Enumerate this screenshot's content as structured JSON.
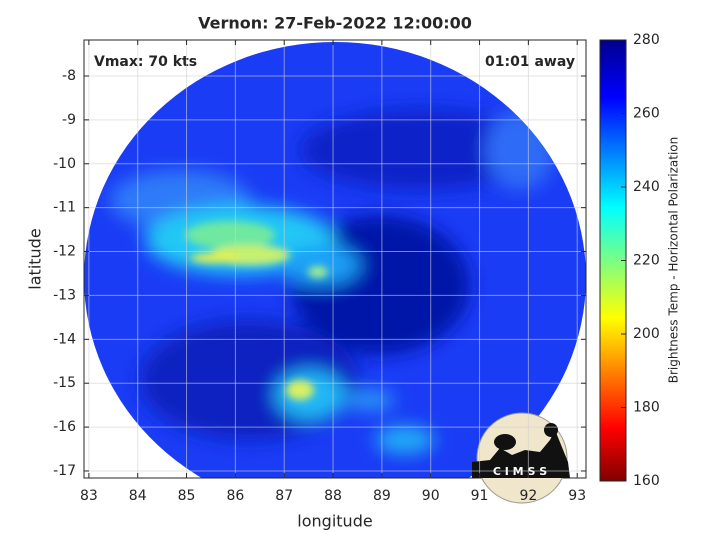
{
  "chart_data": {
    "type": "swath",
    "title": "Vernon: 27-Feb-2022 12:00:00",
    "annotations": [
      "Vmax: 70 kts",
      "01:01 away"
    ],
    "xlabel": "longitude",
    "ylabel": "latitude",
    "xlim": [
      82.9,
      93.18
    ],
    "ylim": [
      -17.16,
      -7.18
    ],
    "xticks": [
      83,
      84,
      85,
      86,
      87,
      88,
      89,
      90,
      91,
      92,
      93
    ],
    "yticks": [
      -8,
      -9,
      -10,
      -11,
      -12,
      -13,
      -14,
      -15,
      -16,
      -17
    ],
    "grid": true,
    "colorbar": {
      "label": "Brightness Temp - Horizontal Polarization",
      "lim": [
        160,
        280
      ],
      "ticks": [
        160,
        180,
        200,
        220,
        240,
        260,
        280
      ],
      "colormap": "jet"
    },
    "logo": "C I M S S"
  }
}
